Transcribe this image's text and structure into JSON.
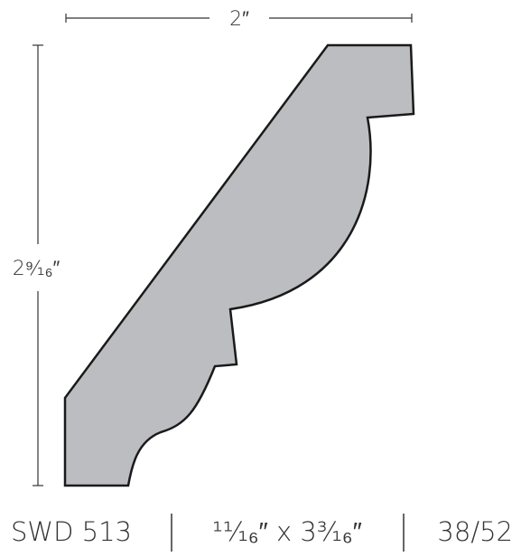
{
  "dimensions": {
    "width": "2″",
    "height": "2⁹⁄₁₆″"
  },
  "footer": {
    "model": "SWD 513",
    "size": "¹¹⁄₁₆″ x 3³⁄₁₆″",
    "count": "38/52"
  }
}
